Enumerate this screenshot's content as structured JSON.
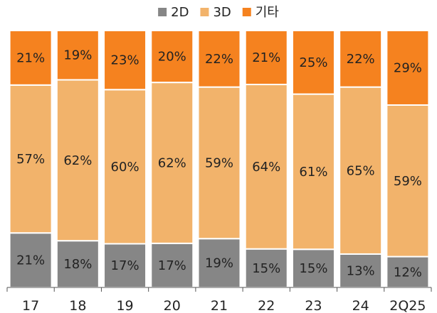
{
  "chart_data": {
    "type": "bar",
    "stacked": true,
    "categories": [
      "17",
      "18",
      "19",
      "20",
      "21",
      "22",
      "23",
      "24",
      "2Q25"
    ],
    "series": [
      {
        "name": "2D",
        "color": "#868686",
        "values": [
          21,
          18,
          17,
          17,
          19,
          15,
          15,
          13,
          12
        ]
      },
      {
        "name": "3D",
        "color": "#f2b36b",
        "values": [
          57,
          62,
          60,
          62,
          59,
          64,
          61,
          65,
          59
        ]
      },
      {
        "name": "기타",
        "color": "#f5821f",
        "values": [
          21,
          19,
          23,
          20,
          22,
          21,
          25,
          22,
          29
        ]
      }
    ],
    "value_suffix": "%",
    "title": "",
    "xlabel": "",
    "ylabel": "",
    "ylim": [
      0,
      100
    ],
    "grid": false,
    "legend_position": "top-center"
  }
}
